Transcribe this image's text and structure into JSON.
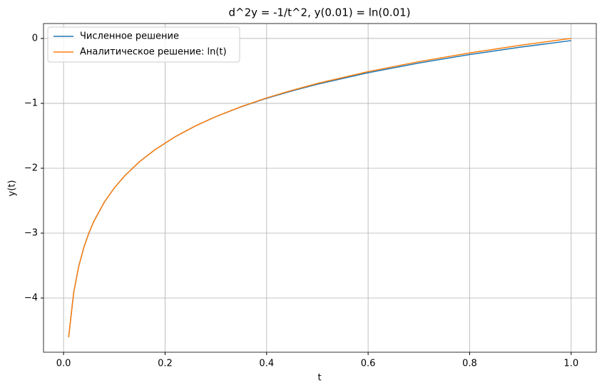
{
  "chart_data": {
    "type": "line",
    "title": "d^2y = -1/t^2, y(0.01) = ln(0.01)",
    "x_label": "t",
    "y_label": "y(t)",
    "x": [
      0.01,
      0.02,
      0.03,
      0.04,
      0.05,
      0.06,
      0.08,
      0.1,
      0.12,
      0.15,
      0.18,
      0.22,
      0.26,
      0.3,
      0.35,
      0.4,
      0.45,
      0.5,
      0.6,
      0.7,
      0.8,
      0.9,
      1.0
    ],
    "series": [
      {
        "name": "Численное решение",
        "color": "#1f77b4",
        "values": [
          -4.605,
          -3.912,
          -3.507,
          -3.219,
          -2.996,
          -2.813,
          -2.526,
          -2.303,
          -2.12,
          -1.897,
          -1.715,
          -1.514,
          -1.347,
          -1.205,
          -1.053,
          -0.922,
          -0.808,
          -0.705,
          -0.528,
          -0.378,
          -0.248,
          -0.134,
          -0.033
        ]
      },
      {
        "name": "Аналитическое решение: ln(t)",
        "color": "#ff7f0e",
        "values": [
          -4.605,
          -3.912,
          -3.507,
          -3.219,
          -2.996,
          -2.813,
          -2.526,
          -2.303,
          -2.12,
          -1.897,
          -1.715,
          -1.514,
          -1.347,
          -1.204,
          -1.05,
          -0.916,
          -0.799,
          -0.693,
          -0.511,
          -0.357,
          -0.223,
          -0.105,
          0
        ]
      }
    ],
    "xlim": [
      -0.0395,
      1.0495
    ],
    "ylim": [
      -4.835,
      0.23
    ],
    "xticks": [
      {
        "value": 0,
        "label": "0.0"
      },
      {
        "value": 0.2,
        "label": "0.2"
      },
      {
        "value": 0.4,
        "label": "0.4"
      },
      {
        "value": 0.6,
        "label": "0.6"
      },
      {
        "value": 0.8,
        "label": "0.8"
      },
      {
        "value": 1,
        "label": "1.0"
      }
    ],
    "yticks": [
      0,
      {
        "value": -1,
        "label": "−1"
      },
      {
        "value": -2,
        "label": "−2"
      },
      {
        "value": -3,
        "label": "−3"
      },
      {
        "value": -4,
        "label": "−4"
      }
    ],
    "grid": true,
    "legend": "upper left"
  }
}
